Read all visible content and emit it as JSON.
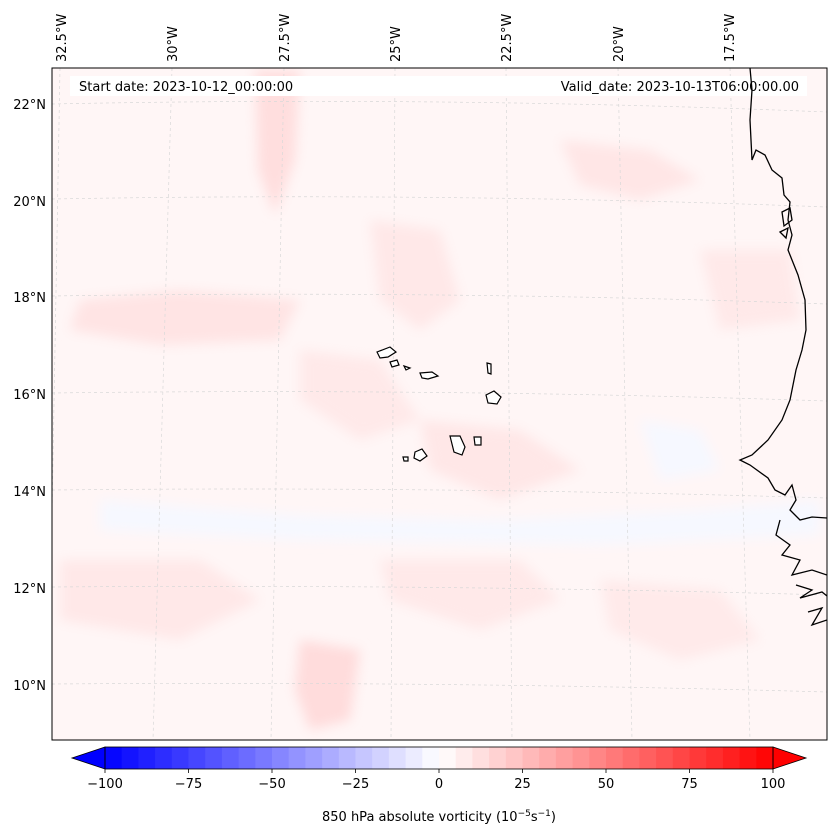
{
  "map": {
    "start_date": "Start date: 2023-10-12_00:00:00",
    "valid_date": "Valid_date: 2023-10-13T06:00:00.00",
    "lon_labels": [
      "32.5°W",
      "30°W",
      "27.5°W",
      "25°W",
      "22.5°W",
      "20°W",
      "17.5°W"
    ],
    "lat_labels": [
      "22°N",
      "20°N",
      "18°N",
      "16°N",
      "14°N",
      "12°N",
      "10°N"
    ],
    "gridlines": true
  },
  "colorbar": {
    "label_text": "850 hPa absolute vorticity (10",
    "label_exp1": "−5",
    "label_mid": "s",
    "label_exp2": "−1",
    "label_end": ")",
    "ticks": [
      "−100",
      "−75",
      "−50",
      "−25",
      "0",
      "25",
      "50",
      "75",
      "100"
    ],
    "range": [
      -100,
      100
    ],
    "colormap": "bwr",
    "low_color": "#0000ff",
    "mid_color": "#ffffff",
    "high_color": "#ff0000"
  }
}
